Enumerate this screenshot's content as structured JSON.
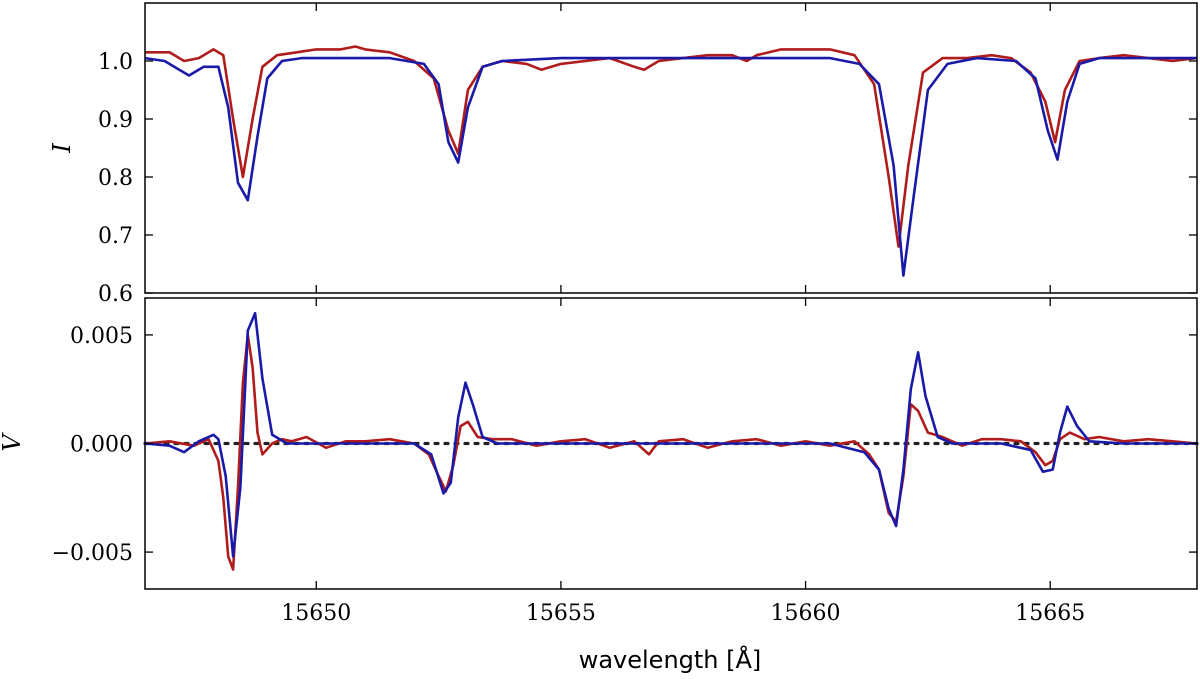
{
  "chart_data": [
    {
      "type": "line",
      "panel": "top",
      "ylabel": "I",
      "xlim": [
        15646.5,
        15668
      ],
      "ylim": [
        0.6,
        1.1
      ],
      "yticks": [
        0.6,
        0.7,
        0.8,
        0.9,
        1.0
      ],
      "ytick_labels": [
        "0.6",
        "0.7",
        "0.8",
        "0.9",
        "1.0"
      ],
      "xticks": [
        15650,
        15655,
        15660,
        15665
      ],
      "xtick_labels": [
        "",
        "",
        "",
        ""
      ],
      "grid": false,
      "colors": {
        "observed": "#b01c1c",
        "model": "#1a1aa8"
      },
      "series": [
        {
          "color": "#b01c1c",
          "x": [
            15646.5,
            15647.0,
            15647.3,
            15647.6,
            15647.9,
            15648.1,
            15648.3,
            15648.5,
            15648.7,
            15648.9,
            15649.2,
            15649.6,
            15650.0,
            15650.5,
            15650.8,
            15651.0,
            15651.5,
            15652.0,
            15652.4,
            15652.7,
            15652.9,
            15653.1,
            15653.4,
            15653.8,
            15654.3,
            15654.6,
            15655.0,
            15655.5,
            15656.0,
            15656.5,
            15656.7,
            15657.0,
            15657.5,
            15658.0,
            15658.5,
            15658.8,
            15659.0,
            15659.5,
            15660.0,
            15660.5,
            15661.0,
            15661.4,
            15661.7,
            15661.9,
            15662.1,
            15662.4,
            15662.8,
            15663.3,
            15663.8,
            15664.2,
            15664.6,
            15664.9,
            15665.1,
            15665.3,
            15665.6,
            15666.0,
            15666.5,
            15667.0,
            15667.5,
            15668.0
          ],
          "y": [
            1.015,
            1.015,
            1.0,
            1.005,
            1.02,
            1.01,
            0.9,
            0.8,
            0.9,
            0.99,
            1.01,
            1.015,
            1.02,
            1.02,
            1.025,
            1.02,
            1.015,
            1.0,
            0.97,
            0.88,
            0.84,
            0.95,
            0.99,
            1.0,
            0.995,
            0.985,
            0.995,
            1.0,
            1.005,
            0.99,
            0.985,
            1.0,
            1.005,
            1.01,
            1.01,
            1.0,
            1.01,
            1.02,
            1.02,
            1.02,
            1.01,
            0.96,
            0.8,
            0.68,
            0.82,
            0.98,
            1.005,
            1.005,
            1.01,
            1.005,
            0.98,
            0.93,
            0.86,
            0.95,
            1.0,
            1.005,
            1.01,
            1.005,
            1.0,
            1.005
          ]
        },
        {
          "color": "#1a1aa8",
          "x": [
            15646.5,
            15646.9,
            15647.2,
            15647.4,
            15647.7,
            15648.0,
            15648.2,
            15648.4,
            15648.6,
            15648.8,
            15649.0,
            15649.3,
            15649.7,
            15650.5,
            15651.5,
            15652.2,
            15652.5,
            15652.7,
            15652.9,
            15653.1,
            15653.4,
            15653.8,
            15655.0,
            15657.0,
            15659.0,
            15660.5,
            15661.1,
            15661.5,
            15661.8,
            15662.0,
            15662.2,
            15662.5,
            15662.9,
            15663.5,
            15664.3,
            15664.7,
            15664.95,
            15665.15,
            15665.35,
            15665.6,
            15666.0,
            15667.0,
            15668.0
          ],
          "y": [
            1.005,
            1.0,
            0.985,
            0.975,
            0.99,
            0.99,
            0.92,
            0.79,
            0.76,
            0.87,
            0.97,
            1.0,
            1.005,
            1.005,
            1.005,
            0.995,
            0.96,
            0.86,
            0.825,
            0.92,
            0.99,
            1.0,
            1.005,
            1.005,
            1.005,
            1.005,
            0.995,
            0.96,
            0.82,
            0.63,
            0.76,
            0.95,
            0.995,
            1.005,
            1.0,
            0.97,
            0.88,
            0.83,
            0.93,
            0.995,
            1.005,
            1.005,
            1.005
          ]
        }
      ]
    },
    {
      "type": "line",
      "panel": "bottom",
      "ylabel": "V",
      "xlabel": "wavelength [Å]",
      "xlim": [
        15646.5,
        15668
      ],
      "ylim": [
        -0.0067,
        0.0067
      ],
      "yticks": [
        -0.005,
        0.0,
        0.005
      ],
      "ytick_labels": [
        "−0.005",
        "0.000",
        "0.005"
      ],
      "xticks": [
        15650,
        15655,
        15660,
        15665
      ],
      "xtick_labels": [
        "15650",
        "15655",
        "15660",
        "15665"
      ],
      "grid": false,
      "reference_line": {
        "y": 0.0,
        "style": "dotted",
        "color": "#222222"
      },
      "series": [
        {
          "color": "#b01c1c",
          "x": [
            15646.5,
            15647.0,
            15647.5,
            15647.8,
            15648.0,
            15648.1,
            15648.2,
            15648.3,
            15648.4,
            15648.5,
            15648.6,
            15648.7,
            15648.8,
            15648.9,
            15649.1,
            15649.3,
            15649.5,
            15649.8,
            15650.2,
            15650.6,
            15651.0,
            15651.5,
            15652.0,
            15652.3,
            15652.5,
            15652.65,
            15652.8,
            15652.95,
            15653.1,
            15653.3,
            15653.6,
            15654.0,
            15654.5,
            15655.0,
            15655.5,
            15656.0,
            15656.5,
            15656.8,
            15657.0,
            15657.5,
            15658.0,
            15658.5,
            15659.0,
            15659.5,
            15660.0,
            15660.5,
            15661.0,
            15661.3,
            15661.5,
            15661.7,
            15661.85,
            15662.0,
            15662.15,
            15662.3,
            15662.5,
            15662.8,
            15663.2,
            15663.6,
            15664.0,
            15664.4,
            15664.7,
            15664.9,
            15665.05,
            15665.2,
            15665.4,
            15665.7,
            15666.0,
            15666.5,
            15667.0,
            15667.5,
            15668.0
          ],
          "y": [
            0.0,
            0.0001,
            -0.0001,
            0.0002,
            -0.0008,
            -0.0025,
            -0.0052,
            -0.0058,
            -0.002,
            0.0028,
            0.005,
            0.0035,
            0.0005,
            -0.0005,
            0.0,
            0.0002,
            0.0001,
            0.0003,
            -0.0002,
            0.0001,
            0.0001,
            0.0002,
            0.0,
            -0.0005,
            -0.0015,
            -0.0022,
            -0.001,
            0.0008,
            0.001,
            0.0003,
            0.0002,
            0.0002,
            -0.0001,
            0.0001,
            0.0002,
            -0.0002,
            0.0001,
            -0.0005,
            0.0001,
            0.0002,
            -0.0002,
            0.0001,
            0.0002,
            -0.0001,
            0.0001,
            -0.0001,
            0.0001,
            -0.0005,
            -0.0012,
            -0.0032,
            -0.0036,
            -0.0015,
            0.0018,
            0.0015,
            0.0005,
            0.0003,
            -0.0001,
            0.0002,
            0.0002,
            0.0001,
            -0.0004,
            -0.001,
            -0.0008,
            0.0002,
            0.0005,
            0.0002,
            0.0003,
            0.0001,
            0.0002,
            0.0001,
            0.0
          ]
        },
        {
          "color": "#1a1aa8",
          "x": [
            15646.5,
            15647.0,
            15647.3,
            15647.6,
            15647.9,
            15648.0,
            15648.15,
            15648.3,
            15648.45,
            15648.6,
            15648.75,
            15648.9,
            15649.1,
            15649.4,
            15649.8,
            15651.0,
            15652.0,
            15652.35,
            15652.6,
            15652.75,
            15652.9,
            15653.05,
            15653.2,
            15653.4,
            15653.7,
            15655.0,
            15657.0,
            15659.0,
            15660.5,
            15661.2,
            15661.5,
            15661.7,
            15661.85,
            15662.0,
            15662.15,
            15662.3,
            15662.45,
            15662.7,
            15663.0,
            15664.0,
            15664.6,
            15664.85,
            15665.05,
            15665.2,
            15665.35,
            15665.55,
            15665.8,
            15666.5,
            15668.0
          ],
          "y": [
            0.0,
            -0.0001,
            -0.0004,
            0.0001,
            0.0004,
            0.0002,
            -0.0015,
            -0.0052,
            -0.002,
            0.0052,
            0.006,
            0.003,
            0.0004,
            0.0,
            0.0,
            0.0,
            0.0,
            -0.0005,
            -0.0023,
            -0.0018,
            0.0012,
            0.0028,
            0.0018,
            0.0003,
            0.0,
            0.0,
            0.0,
            0.0,
            0.0,
            -0.0004,
            -0.0012,
            -0.003,
            -0.0038,
            -0.0012,
            0.0025,
            0.0042,
            0.0022,
            0.0003,
            0.0,
            0.0,
            -0.0003,
            -0.0013,
            -0.0012,
            0.0005,
            0.0017,
            0.0008,
            0.0001,
            0.0,
            0.0
          ]
        }
      ]
    }
  ]
}
